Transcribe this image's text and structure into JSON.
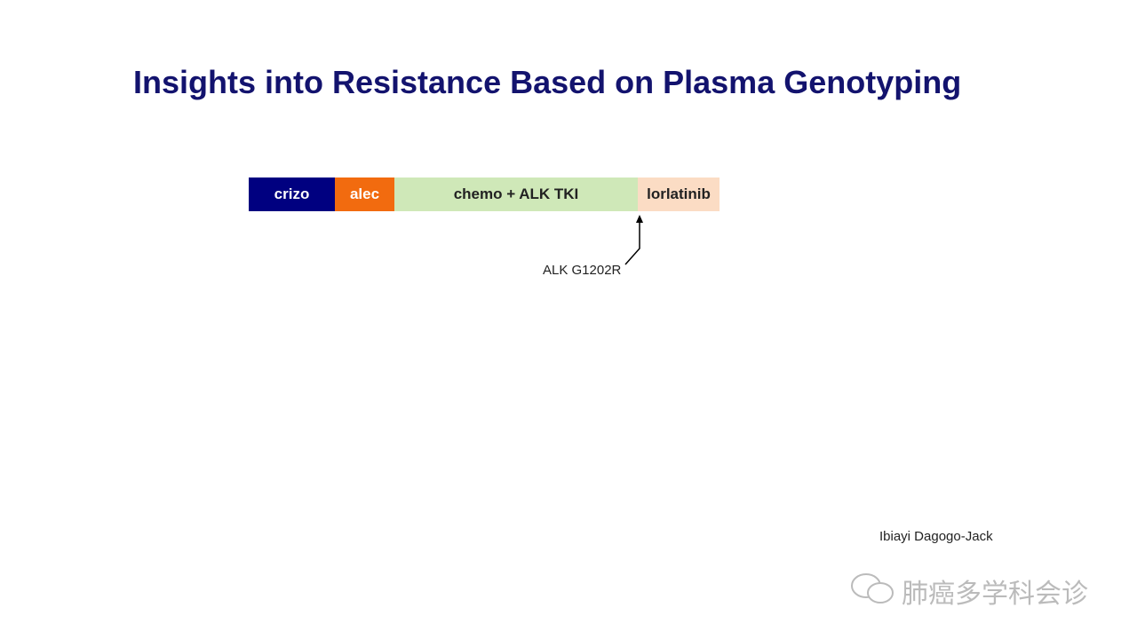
{
  "title": "Insights into Resistance Based on Plasma Genotyping",
  "timeline": {
    "segments": [
      {
        "label": "crizo",
        "color": "#000080",
        "text_color": "#ffffff"
      },
      {
        "label": "alec",
        "color": "#f26b0f",
        "text_color": "#ffffff"
      },
      {
        "label": "chemo + ALK TKI",
        "color": "#cfe8b8",
        "text_color": "#222222"
      },
      {
        "label": "lorlatinib",
        "color": "#fbdcc4",
        "text_color": "#222222"
      }
    ]
  },
  "annotation": "ALK G1202R",
  "author": "Ibiayi Dagogo-Jack",
  "watermark": "肺癌多学科会诊"
}
